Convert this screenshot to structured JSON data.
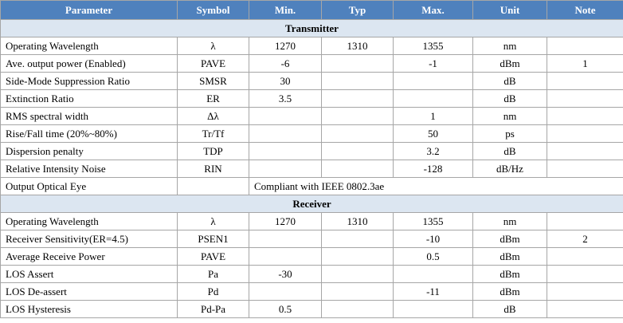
{
  "table": {
    "headers": [
      "Parameter",
      "Symbol",
      "Min.",
      "Typ",
      "Max.",
      "Unit",
      "Note"
    ],
    "sections": [
      {
        "title": "Transmitter",
        "rows": [
          {
            "parameter": "Operating Wavelength",
            "symbol": "λ",
            "min": "1270",
            "typ": "1310",
            "max": "1355",
            "unit": "nm"
          },
          {
            "parameter": "Ave. output power (Enabled)",
            "symbol": "PAVE",
            "min": "-6",
            "max": "-1",
            "unit": "dBm",
            "note": "1"
          },
          {
            "parameter": "Side-Mode Suppression Ratio",
            "symbol": "SMSR",
            "min": "30",
            "unit": "dB"
          },
          {
            "parameter": "Extinction Ratio",
            "symbol": "ER",
            "min": "3.5",
            "unit": "dB"
          },
          {
            "parameter": "RMS spectral width",
            "symbol": "Δλ",
            "max": "1",
            "unit": "nm"
          },
          {
            "parameter": "Rise/Fall time (20%~80%)",
            "symbol": "Tr/Tf",
            "max": "50",
            "unit": "ps"
          },
          {
            "parameter": "Dispersion penalty",
            "symbol": "TDP",
            "max": "3.2",
            "unit": "dB"
          },
          {
            "parameter": "Relative Intensity Noise",
            "symbol": "RIN",
            "max": "-128",
            "unit": "dB/Hz"
          },
          {
            "parameter": "Output Optical Eye",
            "spec": "Compliant with IEEE 0802.3ae"
          }
        ]
      },
      {
        "title": "Receiver",
        "rows": [
          {
            "parameter": "Operating Wavelength",
            "symbol": "λ",
            "min": "1270",
            "typ": "1310",
            "max": "1355",
            "unit": "nm"
          },
          {
            "parameter": "Receiver Sensitivity(ER=4.5)",
            "symbol": "PSEN1",
            "max": "-10",
            "unit": "dBm",
            "note": "2"
          },
          {
            "parameter": "Average Receive Power",
            "symbol": "PAVE",
            "max": "0.5",
            "unit": "dBm"
          },
          {
            "parameter": "LOS Assert",
            "symbol": "Pa",
            "min": "-30",
            "unit": "dBm"
          },
          {
            "parameter": "LOS De-assert",
            "symbol": "Pd",
            "max": "-11",
            "unit": "dBm"
          },
          {
            "parameter": "LOS Hysteresis",
            "symbol": "Pd-Pa",
            "min": "0.5",
            "unit": "dB"
          }
        ]
      }
    ]
  }
}
